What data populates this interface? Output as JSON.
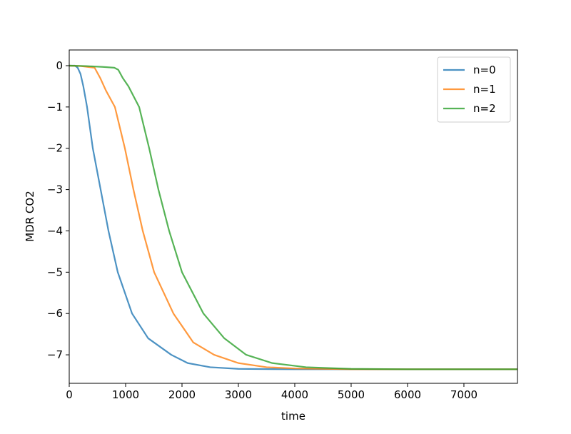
{
  "chart_data": {
    "type": "line",
    "xlabel": "time",
    "ylabel": "MDR CO2",
    "xlim": [
      0,
      7950
    ],
    "ylim": [
      -7.69,
      0.38
    ],
    "xticks": [
      0,
      1000,
      2000,
      3000,
      4000,
      5000,
      6000,
      7000
    ],
    "yticks": [
      0,
      {
        "value": -1,
        "label": "−1"
      },
      {
        "value": -2,
        "label": "−2"
      },
      {
        "value": -3,
        "label": "−3"
      },
      {
        "value": -4,
        "label": "−4"
      },
      {
        "value": -5,
        "label": "−5"
      },
      {
        "value": -6,
        "label": "−6"
      },
      {
        "value": -7,
        "label": "−7"
      }
    ],
    "legend": "upper right",
    "series": [
      {
        "name": "n=0",
        "color": "#1f77b4",
        "x": [
          0,
          100,
          150,
          200,
          250,
          316,
          418,
          557,
          696,
          861,
          1114,
          1400,
          1810,
          2100,
          2500,
          3000,
          4000,
          5000,
          6000,
          7000,
          7950
        ],
        "values": [
          0,
          0,
          -0.05,
          -0.2,
          -0.5,
          -1,
          -2,
          -3,
          -4,
          -5,
          -6,
          -6.6,
          -7,
          -7.2,
          -7.3,
          -7.34,
          -7.35,
          -7.35,
          -7.35,
          -7.35,
          -7.35
        ]
      },
      {
        "name": "n=1",
        "color": "#ff7f0e",
        "x": [
          0,
          200,
          450,
          550,
          650,
          810,
          987,
          1139,
          1304,
          1506,
          1848,
          2200,
          2570,
          3000,
          3500,
          4000,
          5000,
          6000,
          7000,
          7950
        ],
        "values": [
          0,
          -0.01,
          -0.05,
          -0.3,
          -0.6,
          -1,
          -2,
          -3,
          -4,
          -5,
          -6,
          -6.7,
          -7,
          -7.2,
          -7.3,
          -7.33,
          -7.35,
          -7.35,
          -7.35,
          -7.35
        ]
      },
      {
        "name": "n=2",
        "color": "#2ca02c",
        "x": [
          0,
          300,
          600,
          800,
          870,
          950,
          1050,
          1240,
          1418,
          1582,
          1772,
          2000,
          2380,
          2750,
          3139,
          3600,
          4200,
          5000,
          6000,
          7000,
          7950
        ],
        "values": [
          0,
          -0.01,
          -0.03,
          -0.05,
          -0.1,
          -0.3,
          -0.5,
          -1,
          -2,
          -3,
          -4,
          -5,
          -6,
          -6.6,
          -7,
          -7.2,
          -7.3,
          -7.34,
          -7.35,
          -7.35,
          -7.35
        ]
      }
    ]
  }
}
